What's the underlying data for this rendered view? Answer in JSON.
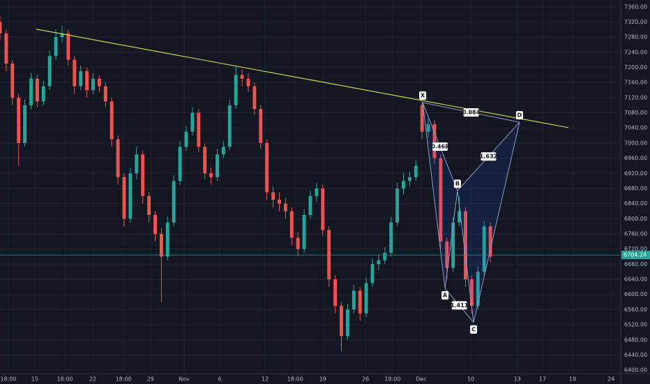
{
  "chart_data": {
    "type": "candlestick",
    "xlim": [
      0,
      200
    ],
    "ylim": [
      6391,
      7378
    ],
    "grid": true,
    "up_color": "#26a69a",
    "down_color": "#ef5350",
    "xticks": [
      {
        "value": 2.7,
        "label": "18:00"
      },
      {
        "value": 11.2,
        "label": "15"
      },
      {
        "value": 20.9,
        "label": "18:00"
      },
      {
        "value": 29.9,
        "label": "22"
      },
      {
        "value": 39.8,
        "label": "18:00"
      },
      {
        "value": 48.5,
        "label": "29"
      },
      {
        "value": 59.3,
        "label": "Nov"
      },
      {
        "value": 70.8,
        "label": "6"
      },
      {
        "value": 85.4,
        "label": "12"
      },
      {
        "value": 95.1,
        "label": "18:00"
      },
      {
        "value": 104,
        "label": "19"
      },
      {
        "value": 117.8,
        "label": "26"
      },
      {
        "value": 126.5,
        "label": "18:00"
      },
      {
        "value": 135.7,
        "label": "Dec"
      },
      {
        "value": 151.7,
        "label": "10"
      },
      {
        "value": 166.7,
        "label": "13"
      },
      {
        "value": 174.8,
        "label": "17"
      },
      {
        "value": 184.5,
        "label": "19"
      },
      {
        "value": 196.9,
        "label": "24"
      }
    ],
    "yticks": [
      {
        "value": 6400,
        "label": "6400.00"
      },
      {
        "value": 6440,
        "label": "6440.00"
      },
      {
        "value": 6480,
        "label": "6480.00"
      },
      {
        "value": 6520,
        "label": "6520.00"
      },
      {
        "value": 6560,
        "label": "6560.00"
      },
      {
        "value": 6600,
        "label": "6600.00"
      },
      {
        "value": 6640,
        "label": "6640.00"
      },
      {
        "value": 6680,
        "label": "6680.00"
      },
      {
        "value": 6720,
        "label": "6720.00"
      },
      {
        "value": 6760,
        "label": "6760.00"
      },
      {
        "value": 6800,
        "label": "6800.00"
      },
      {
        "value": 6840,
        "label": "6840.00"
      },
      {
        "value": 6880,
        "label": "6880.00"
      },
      {
        "value": 6920,
        "label": "6920.00"
      },
      {
        "value": 6960,
        "label": "6960.00"
      },
      {
        "value": 7000,
        "label": "7000.00"
      },
      {
        "value": 7040,
        "label": "7040.00"
      },
      {
        "value": 7080,
        "label": "7080.00"
      },
      {
        "value": 7120,
        "label": "7120.00"
      },
      {
        "value": 7160,
        "label": "7160.00"
      },
      {
        "value": 7200,
        "label": "7200.00"
      },
      {
        "value": 7240,
        "label": "7240.00"
      },
      {
        "value": 7280,
        "label": "7280.00"
      },
      {
        "value": 7320,
        "label": "7320.00"
      },
      {
        "value": 7360,
        "label": "7360.00"
      }
    ],
    "candles": {
      "x": [
        0,
        2,
        4,
        6,
        8,
        10,
        12,
        14,
        16,
        18,
        20,
        22,
        24,
        26,
        28,
        30,
        32,
        34,
        36,
        38,
        40,
        42,
        44,
        46,
        48,
        50,
        52,
        54,
        56,
        58,
        60,
        62,
        64,
        66,
        68,
        70,
        72,
        74,
        76,
        78,
        80,
        82,
        84,
        86,
        88,
        90,
        92,
        94,
        96,
        98,
        100,
        102,
        104,
        106,
        108,
        110,
        112,
        114,
        116,
        118,
        120,
        122,
        124,
        126,
        128,
        130,
        132,
        134,
        136,
        138,
        140,
        142,
        144,
        146,
        148,
        150,
        152,
        154,
        156,
        158
      ],
      "open": [
        7320,
        7290,
        7210,
        7120,
        7000,
        7100,
        7170,
        7110,
        7150,
        7230,
        7280,
        7290,
        7220,
        7150,
        7190,
        7140,
        7170,
        7150,
        7110,
        7010,
        6910,
        6800,
        6920,
        6970,
        6860,
        6810,
        6760,
        6700,
        6790,
        6900,
        6990,
        7030,
        7080,
        6990,
        6920,
        6910,
        6970,
        6990,
        7100,
        7180,
        7170,
        7150,
        7090,
        7000,
        6870,
        6850,
        6840,
        6820,
        6750,
        6720,
        6810,
        6860,
        6880,
        6770,
        6640,
        6570,
        6490,
        6560,
        6610,
        6550,
        6630,
        6680,
        6690,
        6710,
        6790,
        6880,
        6900,
        6910,
        7100,
        7030,
        7050,
        6960,
        6740,
        6670,
        6790,
        6820,
        6640,
        6570,
        6660,
        6780
      ],
      "high": [
        7335,
        7300,
        7220,
        7130,
        7115,
        7185,
        7180,
        7165,
        7245,
        7300,
        7310,
        7300,
        7230,
        7205,
        7200,
        7185,
        7180,
        7160,
        7120,
        7020,
        6920,
        6935,
        6990,
        6980,
        6870,
        6820,
        6775,
        6805,
        6915,
        7005,
        7045,
        7095,
        7090,
        7000,
        6935,
        6985,
        7005,
        7115,
        7205,
        7195,
        7185,
        7160,
        7100,
        7010,
        6885,
        6870,
        6855,
        6830,
        6765,
        6825,
        6875,
        6895,
        6890,
        6780,
        6650,
        6580,
        6575,
        6625,
        6620,
        6645,
        6695,
        6705,
        6725,
        6805,
        6895,
        6920,
        6925,
        6955,
        7110,
        7065,
        7060,
        6970,
        6750,
        6805,
        6860,
        6830,
        6650,
        6675,
        6795,
        6790
      ],
      "low": [
        7270,
        7190,
        7100,
        6940,
        6990,
        7090,
        7095,
        7100,
        7140,
        7220,
        7265,
        7205,
        7130,
        7140,
        7120,
        7130,
        7135,
        7095,
        6990,
        6890,
        6780,
        6790,
        6905,
        6840,
        6790,
        6740,
        6580,
        6690,
        6780,
        6890,
        6980,
        7020,
        6975,
        6905,
        6890,
        6900,
        6960,
        6980,
        7090,
        7150,
        7135,
        7075,
        6985,
        6850,
        6830,
        6820,
        6800,
        6730,
        6700,
        6710,
        6800,
        6845,
        6755,
        6620,
        6550,
        6450,
        6480,
        6550,
        6530,
        6540,
        6620,
        6665,
        6680,
        6700,
        6780,
        6865,
        6885,
        6900,
        7010,
        7015,
        6945,
        6720,
        6640,
        6660,
        6780,
        6620,
        6550,
        6560,
        6650,
        6685
      ],
      "close": [
        7290,
        7210,
        7120,
        7000,
        7100,
        7170,
        7110,
        7150,
        7230,
        7280,
        7290,
        7220,
        7150,
        7190,
        7140,
        7170,
        7150,
        7110,
        7010,
        6910,
        6800,
        6920,
        6970,
        6860,
        6810,
        6760,
        6700,
        6790,
        6900,
        6990,
        7030,
        7080,
        6990,
        6920,
        6910,
        6970,
        6990,
        7100,
        7180,
        7170,
        7150,
        7090,
        7000,
        6870,
        6850,
        6840,
        6820,
        6750,
        6720,
        6810,
        6860,
        6880,
        6770,
        6640,
        6570,
        6490,
        6560,
        6610,
        6550,
        6630,
        6680,
        6690,
        6710,
        6790,
        6880,
        6900,
        6910,
        6940,
        7030,
        7050,
        6960,
        6740,
        6670,
        6790,
        6820,
        6640,
        6570,
        6660,
        6780,
        6700
      ]
    },
    "last_price": 6704.24,
    "last_price_color": "#26a69a",
    "trendline": {
      "x": [
        11.7,
        183.1
      ],
      "y": [
        7301,
        7041
      ],
      "color": "#c8d44a"
    },
    "pattern": {
      "color": "#8e9bc4",
      "points": [
        {
          "label": "X",
          "x": 136.2,
          "y": 7107
        },
        {
          "label": "A",
          "x": 143.4,
          "y": 6616
        },
        {
          "label": "B",
          "x": 147.4,
          "y": 6874
        },
        {
          "label": "C",
          "x": 152.6,
          "y": 6526
        },
        {
          "label": "D",
          "x": 167.4,
          "y": 7055
        }
      ],
      "ratios": [
        0.468,
        1.632,
        1.411,
        0.884
      ]
    }
  }
}
